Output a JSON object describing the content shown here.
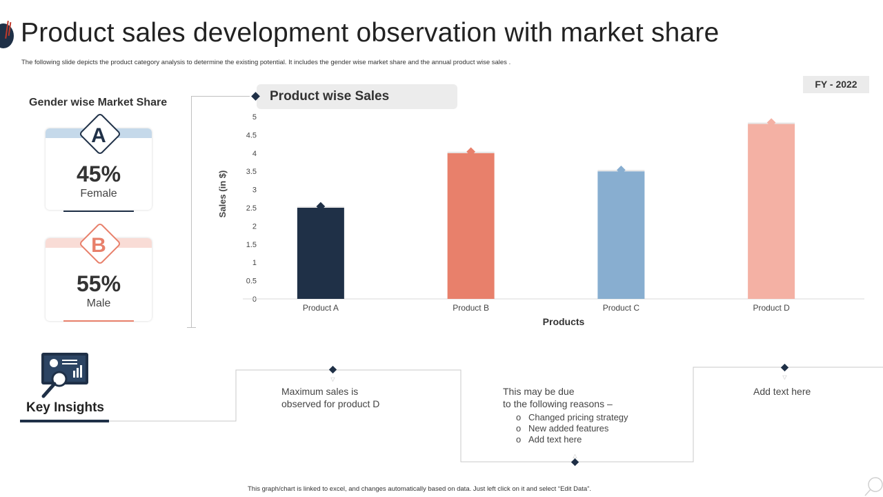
{
  "slide": {
    "title": "Product sales development observation with market share",
    "subtitle": "The following slide depicts the product category analysis to determine the existing potential. It includes the gender wise market share and the annual product wise sales .",
    "fy_badge": "FY - 2022",
    "footnote": "This graph/chart is linked to excel, and changes automatically based on data. Just left click on it and select “Edit Data”."
  },
  "gender": {
    "title": "Gender wise Market Share",
    "cards": [
      {
        "letter": "A",
        "percent": "45%",
        "label": "Female",
        "color": "#1f3047",
        "band": "#c5d9ea"
      },
      {
        "letter": "B",
        "percent": "55%",
        "label": "Male",
        "color": "#e8806b",
        "band": "#f9dcd6"
      }
    ]
  },
  "chart_header": "Product wise Sales",
  "chart_data": {
    "type": "bar",
    "title": "Product wise Sales",
    "categories": [
      "Product A",
      "Product B",
      "Product C",
      "Product D"
    ],
    "values": [
      2.5,
      4.0,
      3.5,
      4.8
    ],
    "colors": [
      "#1f3047",
      "#e8806b",
      "#88aed0",
      "#f4b1a4"
    ],
    "xlabel": "Products",
    "ylabel": "Sales (in $)",
    "ylim": [
      0,
      5
    ],
    "yticks": [
      "0",
      "0.5",
      "1",
      "1.5",
      "2",
      "2.5",
      "3",
      "3.5",
      "4",
      "4.5",
      "5"
    ],
    "grid": false,
    "legend": "none"
  },
  "insights": {
    "label": "Key Insights",
    "item1_line1": "Maximum sales is",
    "item1_line2": "observed for product D",
    "item2_line1": "This may be due",
    "item2_line2": "to the following reasons –",
    "bullet_glyph": "o",
    "bullets": [
      "Changed pricing strategy",
      "New added features",
      "Add text here"
    ],
    "item3": "Add text here"
  },
  "colors": {
    "navy": "#1f3047",
    "coral": "#e8806b",
    "steel_blue": "#88aed0",
    "salmon": "#f4b1a4"
  }
}
